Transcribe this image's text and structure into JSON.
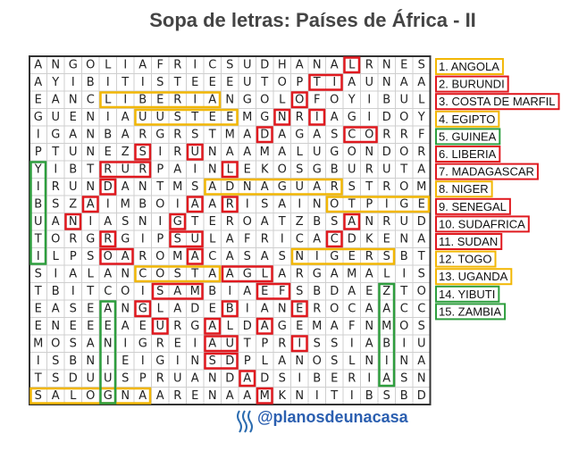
{
  "title": "Sopa de letras: Países de África - II",
  "grid": {
    "rows": [
      "ANGOLIAFRICSUDHANALRNES",
      "AYIBITISTEEEUTOPTIAUNAA",
      "EANCLIBERIANGOLOFOYIBUL",
      "GUENIAUUSTEEMGNRIAGIDOY",
      "IGANBARGRSTMADAGASCORRF",
      "PTUNEZSIRUNAAMALUGONDOR",
      "YIBTRURPAINLEKOSGBURUTA",
      "IRUNDANTMSADNAGUARSTROM",
      "BSZAIMBOIAARISAINOTPIGE",
      "UANIASNIGTEROATZBSANRUD",
      "TORGRGIPSULAFRICACDKENA",
      "ILPSOAROMACASASNIGERSBT",
      "SIALANCOSTAAGLARGAMALIS",
      "TBITCOISAMBIAEFSBDAEZTO",
      "EASEANGLADEBIANEROCAACC",
      "ENEEEAEURGALDAGEMAFNMOS",
      "MOSANIGREIAUTPRISSIABIU",
      "ISBNIEIGINSDPLANOSLNINA",
      "TSDUUSPRUANDADSIBERIASN",
      "SALOGNAARENAAMKNITIBSBD"
    ]
  },
  "words": [
    {
      "label": "1. ANGOLA",
      "color": "#f2b705"
    },
    {
      "label": "2. BURUNDI",
      "color": "#e0191f"
    },
    {
      "label": "3. COSTA DE MARFIL",
      "color": "#e0191f"
    },
    {
      "label": "4. EGIPTO",
      "color": "#f2b705"
    },
    {
      "label": "5. GUINEA",
      "color": "#2e9e3e"
    },
    {
      "label": "6. LIBERIA",
      "color": "#e0191f"
    },
    {
      "label": "7. MADAGASCAR",
      "color": "#e0191f"
    },
    {
      "label": "8. NIGER",
      "color": "#f2b705"
    },
    {
      "label": "9. SENEGAL",
      "color": "#e0191f"
    },
    {
      "label": "10. SUDAFRICA",
      "color": "#e0191f"
    },
    {
      "label": "11. SUDAN",
      "color": "#e0191f"
    },
    {
      "label": "12. TOGO",
      "color": "#f2b705"
    },
    {
      "label": "13. UGANDA",
      "color": "#f2b705"
    },
    {
      "label": "14. YIBUTI",
      "color": "#2e9e3e"
    },
    {
      "label": "15. ZAMBIA",
      "color": "#2e9e3e"
    }
  ],
  "handle": "@planosdeunacasa"
}
